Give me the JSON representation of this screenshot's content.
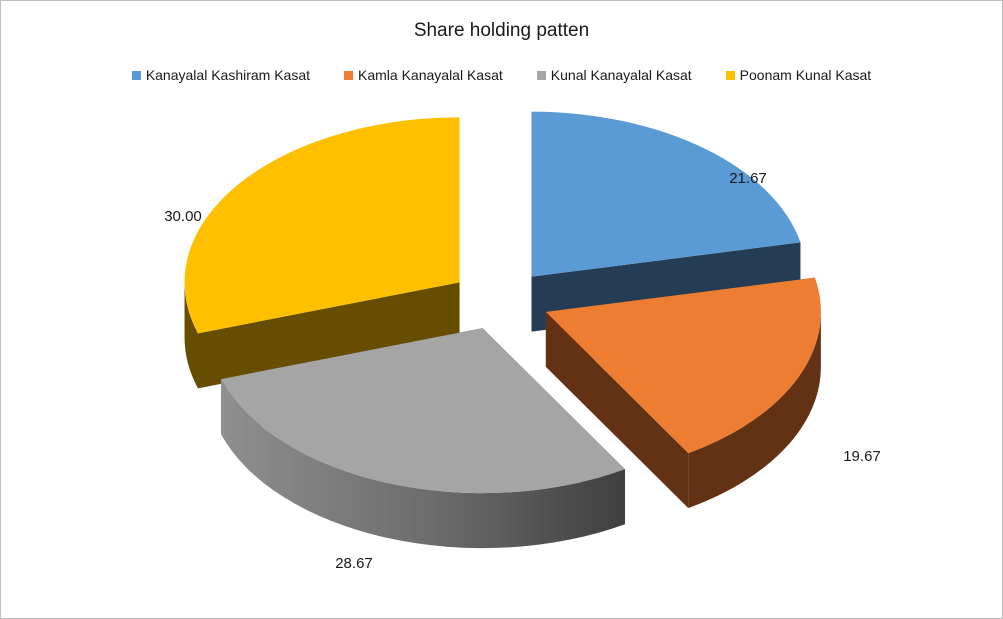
{
  "chart_data": {
    "type": "pie",
    "title": "Share holding patten",
    "legend_position": "top",
    "labels": [
      "Kanayalal Kashiram  Kasat",
      "Kamla Kanayalal Kasat",
      "Kunal Kanayalal  Kasat",
      "Poonam Kunal  Kasat"
    ],
    "values": [
      21.67,
      19.67,
      28.67,
      30.0
    ],
    "data_labels": [
      "21.67",
      "19.67",
      "28.67",
      "30.00"
    ],
    "colors": [
      "#5b9bd5",
      "#ed7d31",
      "#a5a5a5",
      "#ffc000"
    ],
    "side_colors": [
      "#243d55",
      "#633214",
      "#4a4a4a",
      "#664d00"
    ],
    "style": "3d-exploded"
  }
}
